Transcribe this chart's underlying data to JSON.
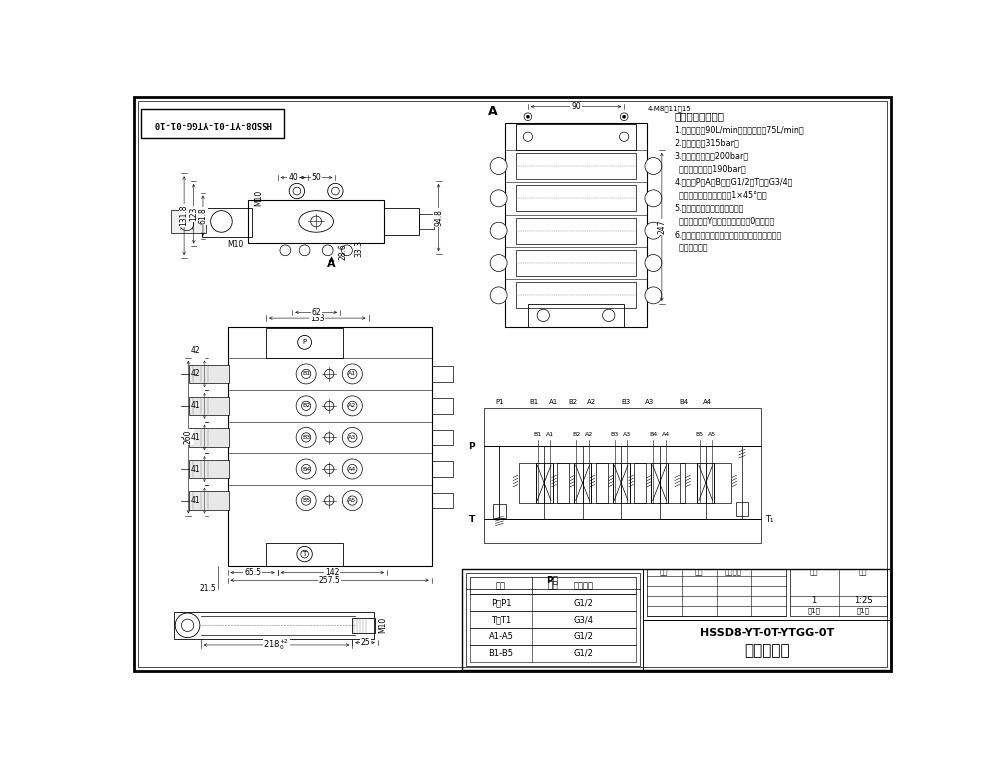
{
  "bg_color": "#ffffff",
  "line_color": "#000000",
  "title_label": "HSSD8-YT-0T-YTGG-0T",
  "subtitle_label": "五联多路阀",
  "drawing_no": "HSSD8-YT-01-YTGG-01-10",
  "tech_title": "技术要求和参数：",
  "tech_items": [
    "1.最大流量：90L/min；额定流量：75L/min；",
    "2.最高压力：315bar；",
    "3.安全阀调定压力200bar；",
    "  过载阀调定压力190bar；",
    "4.油口：P、A、B口为G1/2，T口为G3/4；",
    "  均为平面密封，螺紋孔口1×45°角；",
    "5.控制方式：手动、弹簧复位；",
    "  第一、三联为Y型阀杆，其余联为0型阀杆；",
    "6.阀体表面磷化处理，安全阀及嵌夹销件，支求后",
    "  射为铝本色。"
  ],
  "port_rows": [
    [
      "P、P1",
      "G1/2"
    ],
    [
      "T、T1",
      "G3/4"
    ],
    [
      "A1-A5",
      "G1/2"
    ],
    [
      "B1-B5",
      "G1/2"
    ]
  ]
}
